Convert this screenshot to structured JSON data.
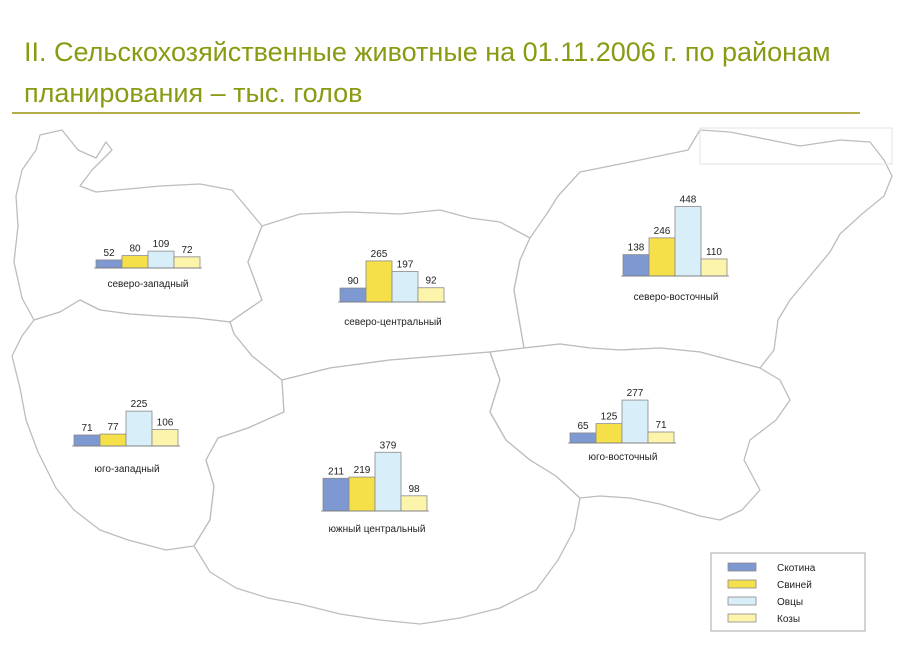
{
  "title": "II. Сельскохозяйственные животные на 01.11.2006 г. по районам планирования – тыс. голов",
  "colors": {
    "cattle": "#7e98d2",
    "pigs": "#f6e04a",
    "sheep": "#d8eef8",
    "goats": "#fbf4aa",
    "border": "#bdbdbd",
    "land": "#ffffff"
  },
  "chart_data": [
    {
      "type": "bar",
      "region": "северо-западный",
      "categories": [
        "Скотина",
        "Свиней",
        "Овцы",
        "Козы"
      ],
      "values": [
        52,
        80,
        109,
        72
      ]
    },
    {
      "type": "bar",
      "region": "северо-центральный",
      "categories": [
        "Скотина",
        "Свиней",
        "Овцы",
        "Козы"
      ],
      "values": [
        90,
        265,
        197,
        92
      ]
    },
    {
      "type": "bar",
      "region": "северо-восточный",
      "categories": [
        "Скотина",
        "Свиней",
        "Овцы",
        "Козы"
      ],
      "values": [
        138,
        246,
        448,
        110
      ]
    },
    {
      "type": "bar",
      "region": "юго-западный",
      "categories": [
        "Скотина",
        "Свиней",
        "Овцы",
        "Козы"
      ],
      "values": [
        71,
        77,
        225,
        106
      ]
    },
    {
      "type": "bar",
      "region": "южный центральный",
      "categories": [
        "Скотина",
        "Свиней",
        "Овцы",
        "Козы"
      ],
      "values": [
        211,
        219,
        379,
        98
      ]
    },
    {
      "type": "bar",
      "region": "юго-восточный",
      "categories": [
        "Скотина",
        "Свиней",
        "Овцы",
        "Козы"
      ],
      "values": [
        65,
        125,
        277,
        71
      ]
    }
  ],
  "legend": {
    "items": [
      {
        "key": "cattle",
        "label": "Скотина"
      },
      {
        "key": "pigs",
        "label": "Свиней"
      },
      {
        "key": "sheep",
        "label": "Овцы"
      },
      {
        "key": "goats",
        "label": "Козы"
      }
    ]
  }
}
